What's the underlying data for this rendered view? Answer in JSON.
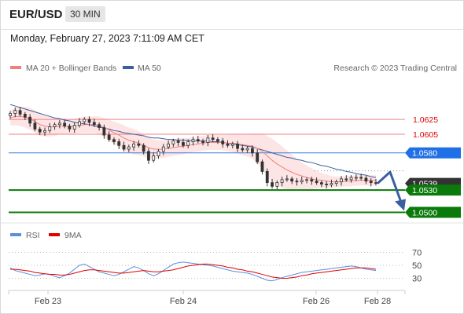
{
  "header": {
    "symbol": "EUR/USD",
    "timeframe": "30 MIN",
    "datetime": "Monday, February 27, 2023 7:11:09 AM CET"
  },
  "legend": {
    "ma20_label": "MA 20 + Bollinger Bands",
    "ma50_label": "MA 50",
    "credit": "Research © 2023 Trading Central",
    "colors": {
      "ma20": "#f08080",
      "ma50": "#3a5fa0",
      "bands": "#fde0e0"
    }
  },
  "rsi_legend": {
    "rsi_label": "RSI",
    "ma_label": "9MA",
    "colors": {
      "rsi": "#5a8fe0",
      "ma": "#e00000"
    }
  },
  "chart_data": [
    {
      "type": "line",
      "subtype": "candlestick",
      "title": "",
      "y_range": [
        1.049,
        1.068
      ],
      "x_ticks": [
        "Feb 23",
        "Feb 24",
        "Feb 26",
        "Feb 28"
      ],
      "price_levels": [
        {
          "label": "1.0625",
          "value": 1.0625,
          "kind": "resistance",
          "color": "#f08080"
        },
        {
          "label": "1.0605",
          "value": 1.0605,
          "kind": "resistance",
          "color": "#f08080"
        },
        {
          "label": "1.0580",
          "value": 1.058,
          "kind": "pivot",
          "color": "#3a7be0"
        },
        {
          "label": "1.0539",
          "value": 1.0539,
          "kind": "last",
          "color": "#333333"
        },
        {
          "label": "1.0530",
          "value": 1.053,
          "kind": "support",
          "color": "#0a7a0a"
        },
        {
          "label": "1.0500",
          "value": 1.05,
          "kind": "support",
          "color": "#0a7a0a"
        }
      ],
      "close_series": [
        1.0633,
        1.0637,
        1.0632,
        1.0628,
        1.062,
        1.0612,
        1.0608,
        1.061,
        1.0615,
        1.0618,
        1.062,
        1.0616,
        1.0612,
        1.0617,
        1.0622,
        1.0625,
        1.0621,
        1.0618,
        1.0614,
        1.0604,
        1.0598,
        1.0595,
        1.059,
        1.0585,
        1.0588,
        1.0592,
        1.059,
        1.0582,
        1.057,
        1.0576,
        1.0582,
        1.0588,
        1.0592,
        1.0596,
        1.0594,
        1.059,
        1.0595,
        1.0598,
        1.0596,
        1.0594,
        1.06,
        1.0598,
        1.0596,
        1.0592,
        1.059,
        1.0592,
        1.0586,
        1.0584,
        1.0586,
        1.058,
        1.0568,
        1.0555,
        1.054,
        1.0535,
        1.054,
        1.0544,
        1.0545,
        1.0542,
        1.0541,
        1.0543,
        1.0544,
        1.0542,
        1.054,
        1.0538,
        1.0537,
        1.0539,
        1.0541,
        1.0545,
        1.0544,
        1.0547,
        1.0547,
        1.0546,
        1.0542,
        1.054,
        1.0539
      ],
      "ma20_series": [
        1.0627,
        1.0629,
        1.0629,
        1.0628,
        1.0626,
        1.0622,
        1.0618,
        1.0616,
        1.0615,
        1.0615,
        1.0616,
        1.0616,
        1.0615,
        1.0616,
        1.0617,
        1.0618,
        1.0618,
        1.0618,
        1.0617,
        1.0614,
        1.0611,
        1.0607,
        1.0604,
        1.06,
        1.0597,
        1.0595,
        1.0593,
        1.059,
        1.0587,
        1.0585,
        1.0585,
        1.0585,
        1.0586,
        1.0587,
        1.0588,
        1.0589,
        1.059,
        1.0591,
        1.0592,
        1.0593,
        1.0594,
        1.0594,
        1.0594,
        1.0594,
        1.0593,
        1.0593,
        1.0592,
        1.0591,
        1.059,
        1.0589,
        1.0586,
        1.0582,
        1.0576,
        1.057,
        1.0565,
        1.0561,
        1.0557,
        1.0554,
        1.0551,
        1.0549,
        1.0547,
        1.0545,
        1.0544,
        1.0543,
        1.0542,
        1.0541,
        1.0541,
        1.0541,
        1.0542,
        1.0542,
        1.0543,
        1.0543,
        1.0543,
        1.0543,
        1.0543
      ],
      "ma50_series": [
        1.0645,
        1.0643,
        1.0641,
        1.0639,
        1.0637,
        1.0635,
        1.0633,
        1.0631,
        1.0629,
        1.0627,
        1.0626,
        1.0624,
        1.0623,
        1.0621,
        1.062,
        1.0619,
        1.0618,
        1.0616,
        1.0615,
        1.0613,
        1.0612,
        1.061,
        1.0609,
        1.0607,
        1.0606,
        1.0605,
        1.0604,
        1.0603,
        1.0601,
        1.06,
        1.06,
        1.0599,
        1.0598,
        1.0598,
        1.0597,
        1.0597,
        1.0597,
        1.0596,
        1.0596,
        1.0596,
        1.0596,
        1.0595,
        1.0595,
        1.0594,
        1.0593,
        1.0592,
        1.0591,
        1.059,
        1.0589,
        1.0588,
        1.0586,
        1.0584,
        1.0582,
        1.058,
        1.0578,
        1.0576,
        1.0574,
        1.0573,
        1.0571,
        1.057,
        1.0568,
        1.0567,
        1.0565,
        1.0563,
        1.0562,
        1.056,
        1.0558,
        1.0557,
        1.0555,
        1.0554,
        1.0552,
        1.0551,
        1.055,
        1.0548,
        1.0547
      ],
      "band_width": [
        0.001,
        0.0012,
        0.0013,
        0.0014,
        0.0015,
        0.0015,
        0.0015,
        0.0014,
        0.0013,
        0.0012,
        0.0011,
        0.001,
        0.001,
        0.001,
        0.001,
        0.0011,
        0.0011,
        0.0011,
        0.0012,
        0.0013,
        0.0014,
        0.0015,
        0.0016,
        0.0017,
        0.0017,
        0.0017,
        0.0016,
        0.0015,
        0.0014,
        0.0013,
        0.0012,
        0.0012,
        0.0011,
        0.0011,
        0.0011,
        0.0011,
        0.001,
        0.001,
        0.001,
        0.001,
        0.001,
        0.001,
        0.001,
        0.001,
        0.0011,
        0.0012,
        0.0013,
        0.0014,
        0.0015,
        0.0017,
        0.002,
        0.0024,
        0.0027,
        0.0029,
        0.0029,
        0.0028,
        0.0026,
        0.0024,
        0.0021,
        0.0018,
        0.0016,
        0.0014,
        0.0012,
        0.001,
        0.0009,
        0.0008,
        0.0007,
        0.0007,
        0.0007,
        0.0007,
        0.0007,
        0.0007,
        0.0007,
        0.0007,
        0.0007
      ],
      "projection": {
        "from": 1.0539,
        "via": 1.055,
        "to": 1.05
      }
    },
    {
      "type": "line",
      "title": "",
      "y_ticks": [
        70,
        50,
        30
      ],
      "rsi_series": [
        46,
        42,
        40,
        38,
        36,
        34,
        35,
        37,
        36,
        33,
        31,
        34,
        38,
        44,
        50,
        52,
        48,
        44,
        40,
        38,
        36,
        34,
        36,
        40,
        44,
        48,
        46,
        42,
        37,
        34,
        37,
        42,
        47,
        52,
        54,
        55,
        54,
        53,
        52,
        51,
        50,
        49,
        47,
        45,
        43,
        41,
        40,
        39,
        38,
        36,
        33,
        30,
        27,
        26,
        28,
        31,
        33,
        35,
        37,
        39,
        40,
        41,
        42,
        43,
        44,
        45,
        46,
        47,
        48,
        49,
        48,
        46,
        44,
        43,
        42
      ],
      "ma_series": [
        44,
        44,
        43,
        42,
        41,
        39,
        38,
        37,
        36,
        36,
        35,
        35,
        36,
        38,
        40,
        42,
        43,
        43,
        42,
        41,
        40,
        39,
        38,
        38,
        39,
        40,
        41,
        42,
        41,
        40,
        40,
        41,
        42,
        43,
        45,
        47,
        49,
        50,
        51,
        52,
        52,
        51,
        50,
        49,
        47,
        46,
        44,
        43,
        41,
        40,
        38,
        36,
        34,
        32,
        31,
        30,
        30,
        31,
        32,
        34,
        35,
        37,
        38,
        39,
        40,
        41,
        42,
        43,
        44,
        45,
        46,
        46,
        46,
        45,
        44
      ]
    }
  ]
}
